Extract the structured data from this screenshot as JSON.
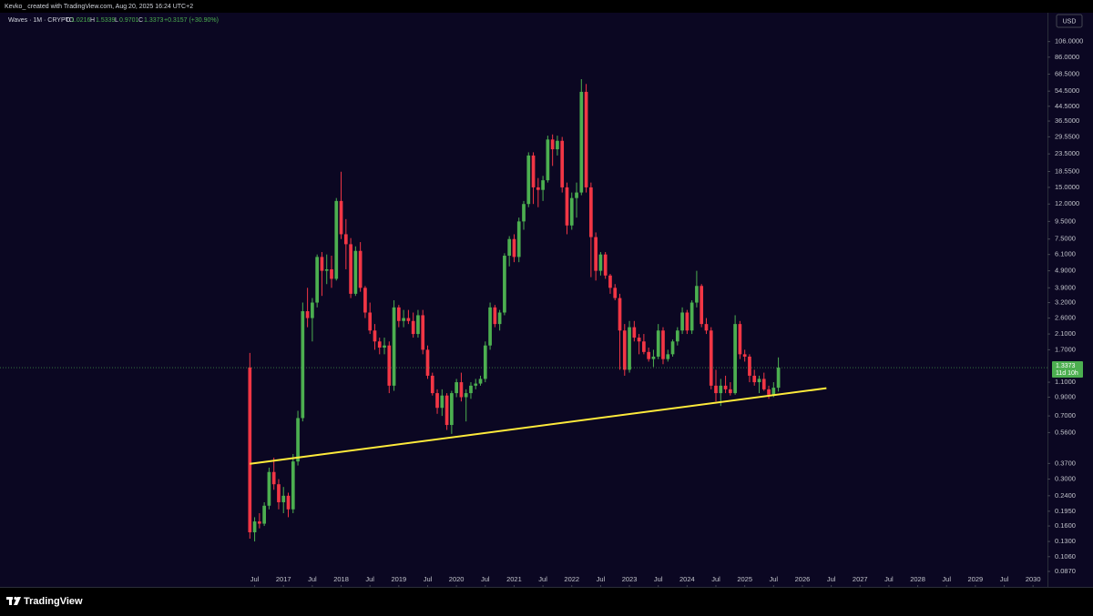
{
  "header": {
    "caption": "Kevko_ created with TradingView.com, Aug 20, 2025 16:24 UTC+2"
  },
  "footer": {
    "brand": "TradingView"
  },
  "chart_data": {
    "type": "candlestick",
    "symbol": "Waves · 1M · CRYPTO",
    "ohlc_labels": [
      "O",
      "H",
      "L",
      "C"
    ],
    "change_label": "+0.3157 (+30.90%)",
    "currency": "USD",
    "countdown": "11d 10h",
    "log_scale": true,
    "grid": false,
    "up_color": "#4caf50",
    "down_color": "#f23645",
    "xlim": [
      "2012-02",
      "2030-04"
    ],
    "ylim": [
      0.0707,
      156
    ],
    "x": [
      "2016-06",
      "2016-07",
      "2016-08",
      "2016-09",
      "2016-10",
      "2016-11",
      "2016-12",
      "2017-01",
      "2017-02",
      "2017-03",
      "2017-04",
      "2017-05",
      "2017-06",
      "2017-07",
      "2017-08",
      "2017-09",
      "2017-10",
      "2017-11",
      "2017-12",
      "2018-01",
      "2018-02",
      "2018-03",
      "2018-04",
      "2018-05",
      "2018-06",
      "2018-07",
      "2018-08",
      "2018-09",
      "2018-10",
      "2018-11",
      "2018-12",
      "2019-01",
      "2019-02",
      "2019-03",
      "2019-04",
      "2019-05",
      "2019-06",
      "2019-07",
      "2019-08",
      "2019-09",
      "2019-10",
      "2019-11",
      "2019-12",
      "2020-01",
      "2020-02",
      "2020-03",
      "2020-04",
      "2020-05",
      "2020-06",
      "2020-07",
      "2020-08",
      "2020-09",
      "2020-10",
      "2020-11",
      "2020-12",
      "2021-01",
      "2021-02",
      "2021-03",
      "2021-04",
      "2021-05",
      "2021-06",
      "2021-07",
      "2021-08",
      "2021-09",
      "2021-10",
      "2021-11",
      "2021-12",
      "2022-01",
      "2022-02",
      "2022-03",
      "2022-04",
      "2022-05",
      "2022-06",
      "2022-07",
      "2022-08",
      "2022-09",
      "2022-10",
      "2022-11",
      "2022-12",
      "2023-01",
      "2023-02",
      "2023-03",
      "2023-04",
      "2023-05",
      "2023-06",
      "2023-07",
      "2023-08",
      "2023-09",
      "2023-10",
      "2023-11",
      "2023-12",
      "2024-01",
      "2024-02",
      "2024-03",
      "2024-04",
      "2024-05",
      "2024-06",
      "2024-07",
      "2024-08",
      "2024-09",
      "2024-10",
      "2024-11",
      "2024-12",
      "2025-01",
      "2025-02",
      "2025-03",
      "2025-04",
      "2025-05",
      "2025-06",
      "2025-07",
      "2025-08"
    ],
    "open": [
      1.34,
      0.147,
      0.17,
      0.165,
      0.21,
      0.33,
      0.28,
      0.22,
      0.24,
      0.2,
      0.38,
      0.68,
      2.85,
      2.6,
      3.2,
      5.9,
      4.9,
      5.0,
      4.4,
      12.5,
      8.0,
      7.0,
      3.6,
      6.4,
      3.9,
      2.8,
      2.2,
      1.9,
      1.75,
      1.8,
      1.05,
      3.0,
      2.5,
      2.6,
      2.5,
      2.1,
      2.7,
      1.7,
      1.2,
      0.95,
      0.78,
      0.92,
      0.62,
      0.95,
      1.1,
      0.9,
      0.95,
      1.05,
      1.08,
      1.15,
      1.8,
      3.0,
      2.4,
      2.8,
      6.0,
      7.5,
      5.9,
      9.5,
      12.0,
      23.0,
      15.0,
      14.5,
      16.5,
      28.5,
      25.0,
      28.0,
      15.0,
      9.0,
      13.0,
      14.0,
      54.0,
      15.0,
      7.7,
      4.9,
      6.1,
      4.6,
      3.9,
      3.4,
      2.2,
      1.3,
      2.3,
      2.0,
      1.9,
      1.65,
      1.5,
      1.55,
      2.2,
      1.5,
      1.6,
      1.9,
      2.2,
      2.8,
      2.2,
      3.2,
      4.0,
      2.4,
      2.2,
      1.05,
      0.95,
      1.05,
      1.0,
      0.95,
      2.4,
      1.6,
      1.55,
      1.2,
      1.1,
      1.15,
      1.0,
      0.93,
      1.0216
    ],
    "high": [
      1.63,
      0.18,
      0.19,
      0.22,
      0.35,
      0.4,
      0.3,
      0.27,
      0.25,
      0.42,
      0.75,
      3.2,
      3.9,
      3.4,
      6.1,
      6.3,
      6.1,
      6.0,
      13.0,
      18.5,
      9.8,
      7.6,
      6.8,
      7.2,
      4.0,
      3.2,
      2.4,
      2.0,
      2.0,
      1.9,
      3.3,
      3.1,
      2.9,
      2.9,
      2.8,
      2.9,
      2.9,
      1.8,
      1.25,
      1.0,
      1.0,
      0.95,
      0.98,
      1.15,
      1.25,
      1.0,
      1.1,
      1.15,
      1.2,
      1.9,
      3.2,
      3.1,
      2.9,
      6.2,
      7.8,
      8.0,
      10.0,
      12.5,
      24.0,
      24.0,
      17.0,
      17.5,
      30.0,
      30.5,
      30.0,
      29.5,
      16.0,
      14.0,
      16.0,
      64.0,
      60.0,
      16.0,
      8.2,
      6.3,
      6.3,
      4.7,
      4.1,
      3.6,
      2.4,
      2.5,
      2.5,
      2.1,
      2.1,
      1.75,
      1.7,
      2.4,
      2.3,
      1.7,
      1.95,
      2.3,
      3.0,
      2.9,
      3.3,
      4.9,
      4.1,
      2.6,
      2.3,
      1.3,
      1.15,
      1.2,
      1.1,
      2.7,
      2.5,
      1.7,
      1.6,
      1.3,
      1.2,
      1.25,
      1.05,
      1.1,
      1.5339
    ],
    "low": [
      0.135,
      0.13,
      0.155,
      0.16,
      0.2,
      0.26,
      0.2,
      0.19,
      0.18,
      0.19,
      0.36,
      0.65,
      2.3,
      1.9,
      3.0,
      3.5,
      4.1,
      3.9,
      4.3,
      7.5,
      5.0,
      3.4,
      3.5,
      3.7,
      2.6,
      2.1,
      1.7,
      1.6,
      1.6,
      0.95,
      0.98,
      2.3,
      2.3,
      2.4,
      2.0,
      2.0,
      1.6,
      1.15,
      0.92,
      0.72,
      0.7,
      0.58,
      0.55,
      0.9,
      0.85,
      0.65,
      0.88,
      1.0,
      1.05,
      1.1,
      1.7,
      2.3,
      2.2,
      2.7,
      5.2,
      5.5,
      5.5,
      8.5,
      11.5,
      12.0,
      11.5,
      12.5,
      16.0,
      20.0,
      23.0,
      14.0,
      8.0,
      8.5,
      10.0,
      13.5,
      14.0,
      4.5,
      4.3,
      4.6,
      4.4,
      3.6,
      3.3,
      1.3,
      1.2,
      1.25,
      1.9,
      1.6,
      1.6,
      1.45,
      1.35,
      1.5,
      1.4,
      1.45,
      1.55,
      1.8,
      2.1,
      2.1,
      2.1,
      3.0,
      2.3,
      2.1,
      1.0,
      0.85,
      0.8,
      0.95,
      0.92,
      0.93,
      1.5,
      1.45,
      1.1,
      1.05,
      0.95,
      0.98,
      0.88,
      0.9,
      0.9701
    ],
    "close": [
      0.147,
      0.17,
      0.165,
      0.21,
      0.33,
      0.28,
      0.22,
      0.24,
      0.2,
      0.38,
      0.68,
      2.85,
      2.6,
      3.2,
      5.9,
      4.9,
      5.0,
      4.4,
      12.5,
      8.0,
      7.0,
      3.6,
      6.4,
      3.9,
      2.8,
      2.2,
      1.9,
      1.75,
      1.8,
      1.05,
      3.0,
      2.5,
      2.6,
      2.5,
      2.1,
      2.7,
      1.7,
      1.2,
      0.95,
      0.78,
      0.92,
      0.62,
      0.95,
      1.1,
      0.9,
      0.95,
      1.05,
      1.08,
      1.15,
      1.8,
      3.0,
      2.4,
      2.8,
      6.0,
      7.5,
      5.9,
      9.5,
      12.0,
      23.0,
      15.0,
      14.5,
      16.5,
      28.5,
      25.0,
      28.0,
      15.0,
      9.0,
      13.0,
      14.0,
      54.0,
      15.0,
      7.7,
      4.9,
      6.1,
      4.6,
      3.9,
      3.4,
      2.2,
      1.3,
      2.3,
      2.0,
      1.9,
      1.65,
      1.5,
      1.55,
      2.2,
      1.5,
      1.6,
      1.9,
      2.2,
      2.8,
      2.2,
      3.2,
      4.0,
      2.4,
      2.2,
      1.05,
      0.95,
      1.05,
      1.0,
      0.95,
      2.4,
      1.6,
      1.55,
      1.2,
      1.1,
      1.15,
      1.0,
      0.93,
      1.0216,
      1.3373
    ],
    "trendline": {
      "x": [
        "2016-06",
        "2026-06"
      ],
      "values": [
        0.368,
        1.015
      ],
      "color": "#ffeb3b"
    },
    "yticks": [
      {
        "value": 106,
        "label": "106.0000"
      },
      {
        "value": 86,
        "label": "86.0000"
      },
      {
        "value": 68.5,
        "label": "68.5000"
      },
      {
        "value": 54.5,
        "label": "54.5000"
      },
      {
        "value": 44.5,
        "label": "44.5000"
      },
      {
        "value": 36.5,
        "label": "36.5000"
      },
      {
        "value": 29.55,
        "label": "29.5500"
      },
      {
        "value": 23.5,
        "label": "23.5000"
      },
      {
        "value": 18.55,
        "label": "18.5500"
      },
      {
        "value": 15,
        "label": "15.0000"
      },
      {
        "value": 12,
        "label": "12.0000"
      },
      {
        "value": 9.5,
        "label": "9.5000"
      },
      {
        "value": 7.5,
        "label": "7.5000"
      },
      {
        "value": 6.1,
        "label": "6.1000"
      },
      {
        "value": 4.9,
        "label": "4.9000"
      },
      {
        "value": 3.9,
        "label": "3.9000"
      },
      {
        "value": 3.2,
        "label": "3.2000"
      },
      {
        "value": 2.6,
        "label": "2.6000"
      },
      {
        "value": 2.1,
        "label": "2.1000"
      },
      {
        "value": 1.7,
        "label": "1.7000"
      },
      {
        "value": 1.1,
        "label": "1.1000"
      },
      {
        "value": 0.9,
        "label": "0.9000"
      },
      {
        "value": 0.7,
        "label": "0.7000"
      },
      {
        "value": 0.56,
        "label": "0.5600"
      },
      {
        "value": 0.37,
        "label": "0.3700"
      },
      {
        "value": 0.3,
        "label": "0.3000"
      },
      {
        "value": 0.24,
        "label": "0.2400"
      },
      {
        "value": 0.195,
        "label": "0.1950"
      },
      {
        "value": 0.16,
        "label": "0.1600"
      },
      {
        "value": 0.13,
        "label": "0.1300"
      },
      {
        "value": 0.106,
        "label": "0.1060"
      },
      {
        "value": 0.087,
        "label": "0.0870"
      }
    ],
    "xticks": [
      {
        "value": "2016-07",
        "label": "Jul"
      },
      {
        "value": "2017-01",
        "label": "2017"
      },
      {
        "value": "2017-07",
        "label": "Jul"
      },
      {
        "value": "2018-01",
        "label": "2018"
      },
      {
        "value": "2018-07",
        "label": "Jul"
      },
      {
        "value": "2019-01",
        "label": "2019"
      },
      {
        "value": "2019-07",
        "label": "Jul"
      },
      {
        "value": "2020-01",
        "label": "2020"
      },
      {
        "value": "2020-07",
        "label": "Jul"
      },
      {
        "value": "2021-01",
        "label": "2021"
      },
      {
        "value": "2021-07",
        "label": "Jul"
      },
      {
        "value": "2022-01",
        "label": "2022"
      },
      {
        "value": "2022-07",
        "label": "Jul"
      },
      {
        "value": "2023-01",
        "label": "2023"
      },
      {
        "value": "2023-07",
        "label": "Jul"
      },
      {
        "value": "2024-01",
        "label": "2024"
      },
      {
        "value": "2024-07",
        "label": "Jul"
      },
      {
        "value": "2025-01",
        "label": "2025"
      },
      {
        "value": "2025-07",
        "label": "Jul"
      },
      {
        "value": "2026-01",
        "label": "2026"
      },
      {
        "value": "2026-07",
        "label": "Jul"
      },
      {
        "value": "2027-01",
        "label": "2027"
      },
      {
        "value": "2027-07",
        "label": "Jul"
      },
      {
        "value": "2028-01",
        "label": "2028"
      },
      {
        "value": "2028-07",
        "label": "Jul"
      },
      {
        "value": "2029-01",
        "label": "2029"
      },
      {
        "value": "2029-07",
        "label": "Jul"
      },
      {
        "value": "2030-01",
        "label": "2030"
      }
    ]
  }
}
